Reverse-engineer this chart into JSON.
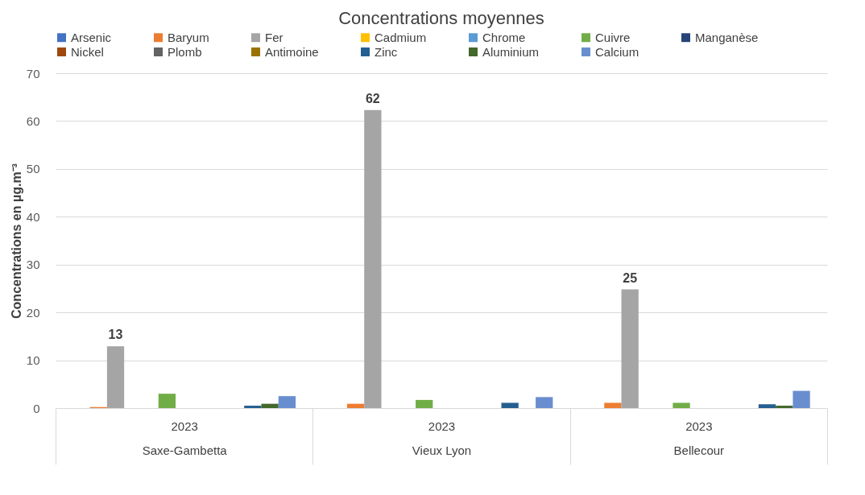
{
  "chart_data": {
    "type": "bar",
    "title": "Concentrations moyennes",
    "ylabel": "Concentrations  en µg.m⁻³",
    "categories": [
      "2023\nSaxe-Gambetta",
      "2023\nVieux Lyon",
      "2023\nBellecour"
    ],
    "series": [
      {
        "name": "Arsenic",
        "color": "#4472c4",
        "values": [
          0,
          0,
          0
        ]
      },
      {
        "name": "Baryum",
        "color": "#ed7d31",
        "values": [
          0.2,
          0.9,
          1.1
        ]
      },
      {
        "name": "Fer",
        "color": "#a5a5a5",
        "values": [
          12.9,
          62.3,
          24.8
        ],
        "value_labels": [
          "13",
          "62",
          "25"
        ]
      },
      {
        "name": "Cadmium",
        "color": "#ffc000",
        "values": [
          0,
          0,
          0
        ]
      },
      {
        "name": "Chrome",
        "color": "#5b9bd5",
        "values": [
          0,
          0,
          0
        ]
      },
      {
        "name": "Cuivre",
        "color": "#70ad47",
        "values": [
          3.0,
          1.7,
          1.1
        ]
      },
      {
        "name": "Manganèse",
        "color": "#264478",
        "values": [
          0,
          0,
          0
        ]
      },
      {
        "name": "Nickel",
        "color": "#9e480e",
        "values": [
          0,
          0,
          0
        ]
      },
      {
        "name": "Plomb",
        "color": "#636363",
        "values": [
          0,
          0,
          0
        ]
      },
      {
        "name": "Antimoine",
        "color": "#997300",
        "values": [
          0,
          0,
          0
        ]
      },
      {
        "name": "Zinc",
        "color": "#255e91",
        "values": [
          0.5,
          1.1,
          0.8
        ]
      },
      {
        "name": "Aluminium",
        "color": "#43682b",
        "values": [
          0.9,
          0,
          0.5
        ]
      },
      {
        "name": "Calcium",
        "color": "#698ed0",
        "values": [
          2.5,
          2.3,
          3.6
        ]
      }
    ],
    "ylim": [
      0,
      70
    ],
    "yticks": [
      0,
      10,
      20,
      30,
      40,
      50,
      60,
      70
    ],
    "grid": "y",
    "legend": "top"
  }
}
